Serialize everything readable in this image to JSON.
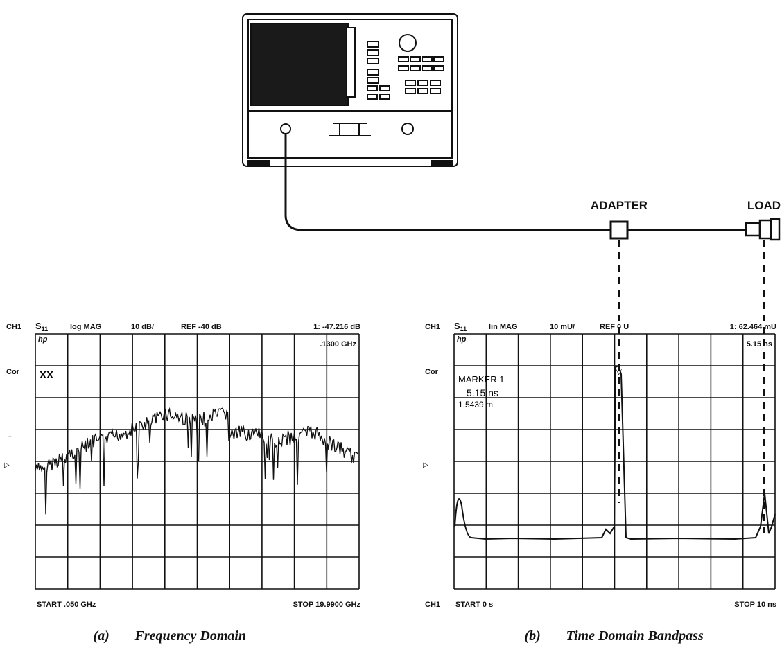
{
  "setup": {
    "adapter_label": "ADAPTER",
    "load_label": "LOAD"
  },
  "screens": [
    {
      "header": {
        "channel": "CH1",
        "param": "S",
        "param_sub": "11",
        "format": "log MAG",
        "scale": "10 dB/",
        "ref": "REF -40 dB",
        "marker": "1: -47.216 dB"
      },
      "logo": "hp",
      "marker_pos": ".1300 GHz",
      "cor": "Cor",
      "note": "XX",
      "start": "START .050 GHz",
      "stop": "STOP 19.9900 GHz",
      "caption_letter": "(a)",
      "caption": "Frequency Domain"
    },
    {
      "header": {
        "channel": "CH1",
        "param": "S",
        "param_sub": "11",
        "format": "lin MAG",
        "scale": "10 mU/",
        "ref": "REF 0 U",
        "marker": "1: 62.464 mU"
      },
      "logo": "hp",
      "marker_pos": "5.15 ns",
      "cor": "Cor",
      "marker_title": "MARKER 1",
      "marker_time": "5.15 ns",
      "marker_dist": "1.5439 m",
      "footer_channel": "CH1",
      "start": "START 0 s",
      "stop": "STOP 10 ns",
      "caption_letter": "(b)",
      "caption": "Time Domain Bandpass"
    }
  ]
}
